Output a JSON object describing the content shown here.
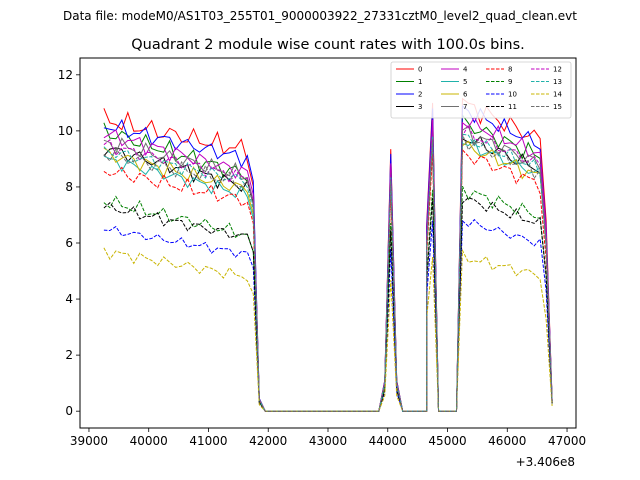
{
  "suptitle": "Data file: modeM0/AS1T03_255T01_9000003922_27331cztM0_level2_quad_clean.evt",
  "chart_data": {
    "type": "line",
    "title": "Quadrant 2 module wise count rates with 100.0s bins.",
    "xlabel": "",
    "ylabel": "",
    "x_offset_label": "+3.406e8",
    "xlim": [
      38850,
      47150
    ],
    "ylim": [
      -0.6,
      12.6
    ],
    "xticks": [
      39000,
      40000,
      41000,
      42000,
      43000,
      44000,
      45000,
      46000,
      47000
    ],
    "xtick_labels": [
      "39000",
      "40000",
      "41000",
      "42000",
      "43000",
      "44000",
      "45000",
      "46000",
      "47000"
    ],
    "yticks": [
      0,
      2,
      4,
      6,
      8,
      10,
      12
    ],
    "ytick_labels": [
      "0",
      "2",
      "4",
      "6",
      "8",
      "10",
      "12"
    ],
    "legend_location": "top-right",
    "segments": [
      {
        "start": 39250,
        "step": 100,
        "count": 25
      },
      {
        "start": 41750,
        "step": 100,
        "count": 22
      },
      {
        "start": 43950,
        "step": 100,
        "count": 2
      },
      {
        "start": 44150,
        "step": 100,
        "count": 6
      },
      {
        "start": 44650,
        "step": 100,
        "count": 2
      },
      {
        "start": 44850,
        "step": 100,
        "count": 4
      },
      {
        "start": 45250,
        "step": 100,
        "count": 14
      },
      {
        "start": 46650,
        "step": 100,
        "count": 2
      }
    ],
    "shape": {
      "off_levels": [
        0.9,
        0.05,
        0,
        0,
        0,
        0,
        0,
        0,
        0,
        0,
        0,
        0,
        0,
        0,
        0,
        0,
        0,
        0,
        0,
        0,
        0,
        0
      ],
      "rise1_levels": [
        0.1,
        0.85
      ],
      "fall1_levels": [
        0.1,
        0,
        0,
        0,
        0,
        0
      ],
      "rise2_levels": [
        0.6,
        1.0
      ],
      "fall2_levels": [
        0,
        0,
        0,
        0
      ],
      "end_levels": [
        0.7,
        0.04
      ]
    },
    "series": [
      {
        "name": "0",
        "color": "#ff0000",
        "dash": "solid",
        "base": 10.4,
        "wiggle": 0.45,
        "trend": -1.1,
        "offset": 11.0
      },
      {
        "name": "1",
        "color": "#008000",
        "dash": "solid",
        "base": 10.0,
        "wiggle": 0.4,
        "trend": -1.6,
        "offset": 10.3
      },
      {
        "name": "2",
        "color": "#0000ff",
        "dash": "solid",
        "base": 10.2,
        "wiggle": 0.35,
        "trend": -1.2,
        "offset": 10.8
      },
      {
        "name": "3",
        "color": "#000000",
        "dash": "solid",
        "base": 9.4,
        "wiggle": 0.35,
        "trend": -1.4,
        "offset": 9.8
      },
      {
        "name": "4",
        "color": "#c000c0",
        "dash": "solid",
        "base": 9.9,
        "wiggle": 0.35,
        "trend": -1.4,
        "offset": 10.4
      },
      {
        "name": "5",
        "color": "#20b2aa",
        "dash": "solid",
        "base": 9.0,
        "wiggle": 0.3,
        "trend": -1.3,
        "offset": 9.6
      },
      {
        "name": "6",
        "color": "#c8b400",
        "dash": "solid",
        "base": 9.2,
        "wiggle": 0.35,
        "trend": -1.3,
        "offset": 9.5
      },
      {
        "name": "7",
        "color": "#707070",
        "dash": "solid",
        "base": 9.6,
        "wiggle": 0.35,
        "trend": -1.2,
        "offset": 10.0
      },
      {
        "name": "8",
        "color": "#ff0000",
        "dash": "dashed",
        "base": 8.6,
        "wiggle": 0.35,
        "trend": -1.1,
        "offset": 9.2
      },
      {
        "name": "9",
        "color": "#008000",
        "dash": "dashed",
        "base": 7.5,
        "wiggle": 0.3,
        "trend": -1.2,
        "offset": 7.9
      },
      {
        "name": "10",
        "color": "#0000ff",
        "dash": "dashed",
        "base": 6.5,
        "wiggle": 0.2,
        "trend": -0.9,
        "offset": 6.8
      },
      {
        "name": "11",
        "color": "#000000",
        "dash": "dashed",
        "base": 7.3,
        "wiggle": 0.25,
        "trend": -1.1,
        "offset": 7.6
      },
      {
        "name": "12",
        "color": "#c000c0",
        "dash": "dashed",
        "base": 9.5,
        "wiggle": 0.3,
        "trend": -1.2,
        "offset": 10.0
      },
      {
        "name": "13",
        "color": "#20b2aa",
        "dash": "dashed",
        "base": 9.3,
        "wiggle": 0.3,
        "trend": -1.1,
        "offset": 9.8
      },
      {
        "name": "14",
        "color": "#c8b400",
        "dash": "dashed",
        "base": 5.7,
        "wiggle": 0.25,
        "trend": -0.9,
        "offset": 5.5
      },
      {
        "name": "15",
        "color": "#707070",
        "dash": "dashed",
        "base": 9.2,
        "wiggle": 0.35,
        "trend": -1.1,
        "offset": 9.7
      }
    ]
  }
}
